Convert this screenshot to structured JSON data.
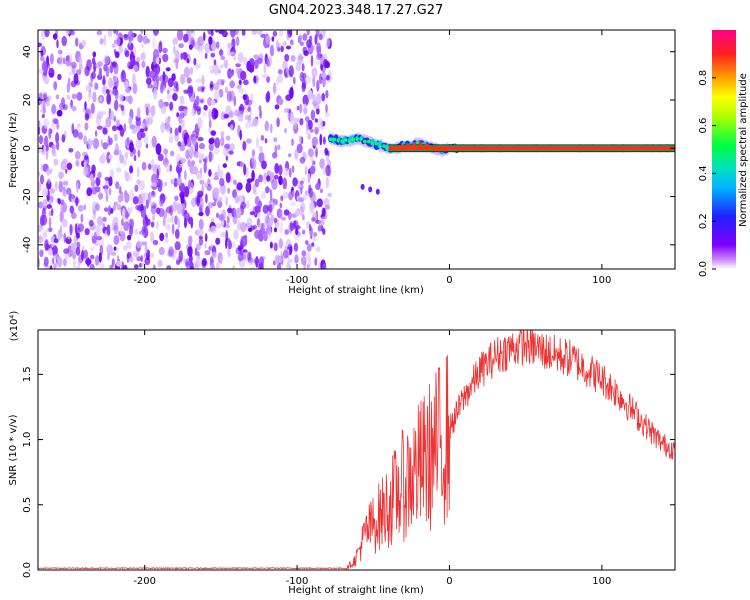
{
  "figure_title": "GN04.2023.348.17.27.G27",
  "chart_data": [
    {
      "type": "heatmap",
      "title": "",
      "xlabel": "Height of straight line (km)",
      "ylabel": "Frequency (Hz)",
      "xlim": [
        -270,
        148
      ],
      "ylim": [
        -50,
        49
      ],
      "xticks": [
        -200,
        -100,
        0,
        100
      ],
      "yticks": [
        -40,
        -20,
        0,
        20,
        40
      ],
      "x_tick_labels": [
        "-200",
        "-100",
        "0",
        "100"
      ],
      "y_tick_labels": [
        "-40",
        "-20",
        "0",
        "20",
        "40"
      ],
      "colorbar": {
        "label": "Normalized spectral amplitude",
        "range": [
          0,
          1
        ],
        "ticks": [
          "0.0",
          "0.2",
          "0.4",
          "0.6",
          "0.8"
        ],
        "colormap": "rainbow"
      },
      "noise_region_x": [
        -270,
        -78
      ],
      "signal_track": [
        {
          "x": -78,
          "f": 4
        },
        {
          "x": -72,
          "f": 3
        },
        {
          "x": -66,
          "f": 3
        },
        {
          "x": -60,
          "f": 4
        },
        {
          "x": -55,
          "f": 3
        },
        {
          "x": -50,
          "f": 2
        },
        {
          "x": -45,
          "f": 1
        },
        {
          "x": -40,
          "f": 0
        },
        {
          "x": -35,
          "f": 0
        },
        {
          "x": -30,
          "f": 1
        },
        {
          "x": -25,
          "f": 1
        },
        {
          "x": -20,
          "f": 2
        },
        {
          "x": -15,
          "f": 1
        },
        {
          "x": -10,
          "f": 0
        },
        {
          "x": -5,
          "f": -1
        },
        {
          "x": 0,
          "f": 0
        },
        {
          "x": 50,
          "f": 0
        },
        {
          "x": 100,
          "f": 0
        },
        {
          "x": 148,
          "f": 0
        }
      ]
    },
    {
      "type": "line",
      "title": "",
      "xlabel": "Height of straight line (km)",
      "ylabel": "SNR (10 * v/v)",
      "y_scale_label": "(x10⁴)",
      "xlim": [
        -270,
        148
      ],
      "ylim": [
        0,
        1.84
      ],
      "xticks": [
        -200,
        -100,
        0,
        100
      ],
      "yticks": [
        0,
        0.5,
        1.0,
        1.5
      ],
      "x_tick_labels": [
        "-200",
        "-100",
        "0",
        "100"
      ],
      "y_tick_labels": [
        "0.0",
        "0.5",
        "1.0",
        "1.5"
      ],
      "color": "#ee3333",
      "series": [
        {
          "x": [
            -270,
            -200,
            -100,
            -68,
            -62,
            -55,
            -45,
            -30,
            -15,
            0,
            10,
            20,
            30,
            40,
            50,
            60,
            70,
            80,
            90,
            100,
            110,
            120,
            130,
            140,
            148
          ],
          "values": [
            0.01,
            0.01,
            0.01,
            0.01,
            0.08,
            0.3,
            0.45,
            0.7,
            0.9,
            1.12,
            1.38,
            1.58,
            1.7,
            1.76,
            1.8,
            1.75,
            1.71,
            1.68,
            1.6,
            1.52,
            1.41,
            1.27,
            1.13,
            1.0,
            0.96
          ]
        }
      ]
    }
  ]
}
